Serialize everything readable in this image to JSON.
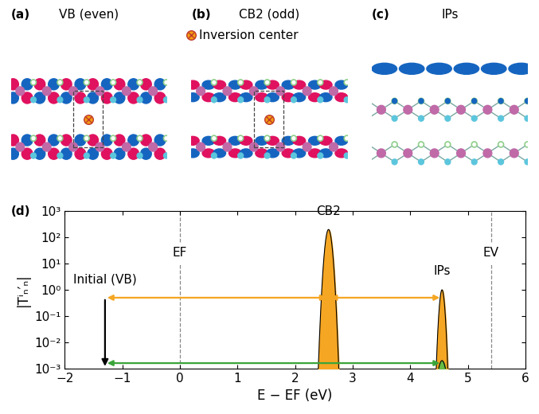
{
  "panels": [
    {
      "label": "(a)",
      "title": "VB (even)",
      "kind": "even"
    },
    {
      "label": "(b)",
      "title": "CB2 (odd)",
      "kind": "odd"
    },
    {
      "label": "(c)",
      "title": "IPs",
      "kind": "ips"
    }
  ],
  "inversion_legend": "Inversion center",
  "chart_data": {
    "panel_label": "(d)",
    "type": "line",
    "log": "y",
    "xlim": [
      -2,
      6
    ],
    "ylim": [
      0.001,
      1000
    ],
    "xticks": [
      {
        "value": -2,
        "label": "−2"
      },
      {
        "value": -1,
        "label": "−1"
      },
      0,
      1,
      2,
      3,
      4,
      5,
      6
    ],
    "yticks": [
      {
        "value": 0.001,
        "label": "10⁻³"
      },
      {
        "value": 0.01,
        "label": "10⁻²"
      },
      {
        "value": 0.1,
        "label": "10⁻¹"
      },
      {
        "value": 1,
        "label": "10⁰"
      },
      {
        "value": 10,
        "label": "10¹"
      },
      {
        "value": 100,
        "label": "10²"
      },
      {
        "value": 1000,
        "label": "10³"
      }
    ],
    "x_label": "E − EF (eV)",
    "y_label": "|Tⁱₙ′ₙ|",
    "levels": [
      {
        "label": "EF",
        "x": 0
      },
      {
        "label": "EV",
        "x": 5.4
      }
    ],
    "series": [
      {
        "name": "CB2",
        "center": 2.58,
        "peak": 200,
        "sigma": 0.036,
        "color": "#f5a623"
      },
      {
        "name": "IPs",
        "center": 4.55,
        "peak": 1.0,
        "sigma": 0.027,
        "color": "#f5a623"
      },
      {
        "name": null,
        "center": 4.55,
        "peak": 0.002,
        "sigma": 0.05,
        "color": "#66bb44"
      }
    ],
    "initial": {
      "label": "Initial (VB)",
      "x": -1.3,
      "y_top": 0.5,
      "color": "#000000"
    },
    "transitions": [
      {
        "from": -1.3,
        "to": 2.58,
        "y": 0.5,
        "color": "#f5a623"
      },
      {
        "from": 2.58,
        "to": 4.55,
        "y": 0.5,
        "color": "#f5a623"
      },
      {
        "from": -1.3,
        "to": 4.55,
        "y": 0.0016,
        "color": "#3aa53a"
      }
    ]
  }
}
